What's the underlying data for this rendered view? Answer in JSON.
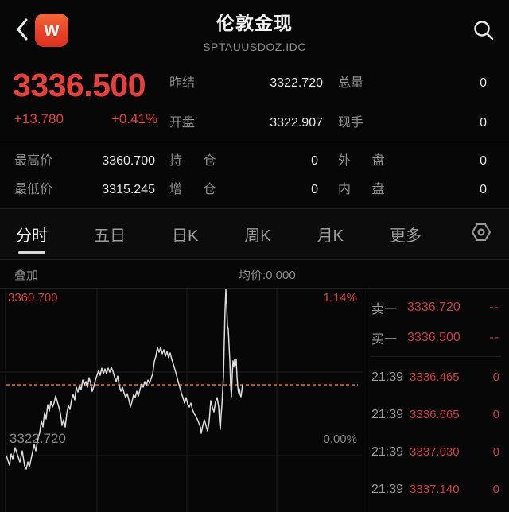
{
  "colors": {
    "up_red": "#e8413c",
    "panel_red": "#ce3a3e",
    "label_gray": "#8d8d8d",
    "value_white": "#e6e6e6",
    "avg_dash_orange": "#c4571f",
    "logo_orange": "#e74128",
    "line_white": "#dcdcdc"
  },
  "icons": {
    "back": "chevron-left",
    "logo": "wind-w",
    "search": "magnifier",
    "settings": "hexagon-gear"
  },
  "header": {
    "logo_text": "w",
    "title": "伦敦金现",
    "subtitle": "SPTAUUSDOZ.IDC"
  },
  "quote": {
    "last_price": "3336.500",
    "change": "+13.780",
    "change_pct": "+0.41%",
    "prev_settle": {
      "label": "昨结",
      "value": "3322.720"
    },
    "open": {
      "label": "开盘",
      "value": "3322.907"
    },
    "total_vol": {
      "label": "总量",
      "value": "0"
    },
    "cur_vol": {
      "label": "现手",
      "value": "0"
    },
    "high": {
      "label": "最高价",
      "value": "3360.700"
    },
    "low": {
      "label": "最低价",
      "value": "3315.245"
    },
    "open_interest": {
      "label": "持 仓",
      "value": "0"
    },
    "oi_change": {
      "label": "增 仓",
      "value": "0"
    },
    "outer_vol": {
      "label": "外 盘",
      "value": "0"
    },
    "inner_vol": {
      "label": "内 盘",
      "value": "0"
    }
  },
  "tabs": [
    {
      "label": "分时",
      "active": true
    },
    {
      "label": "五日",
      "active": false
    },
    {
      "label": "日K",
      "active": false
    },
    {
      "label": "周K",
      "active": false
    },
    {
      "label": "月K",
      "active": false
    },
    {
      "label": "更多",
      "active": false
    }
  ],
  "chart_data": {
    "type": "line",
    "title": "分时 (intraday minute line)",
    "overlay_label": "叠加",
    "avg_label": "均价:0.000",
    "y_max_label": "3360.700",
    "y_max_pct": "1.14%",
    "y_ref_label": "3322.720",
    "y_ref_pct": "0.00%",
    "axis": {
      "price_top": 3360.7,
      "price_ref": 3322.72,
      "high": 3360.7,
      "low": 3315.245,
      "grid": "3 vertical, 2 horizontal, dashed line = last price"
    },
    "last_price": 3336.5,
    "legend_position": "none",
    "points": [
      [
        8,
        3318.7
      ],
      [
        10,
        3317.5
      ],
      [
        12,
        3316.3
      ],
      [
        14,
        3319.1
      ],
      [
        16,
        3317.9
      ],
      [
        19,
        3320.7
      ],
      [
        22,
        3318.9
      ],
      [
        25,
        3317.1
      ],
      [
        28,
        3319.9
      ],
      [
        31,
        3316.1
      ],
      [
        33,
        3315.3
      ],
      [
        35,
        3317.1
      ],
      [
        37,
        3315.9
      ],
      [
        40,
        3318.7
      ],
      [
        43,
        3321.5
      ],
      [
        45,
        3319.9
      ],
      [
        48,
        3323.1
      ],
      [
        50,
        3324.5
      ],
      [
        52,
        3327.5
      ],
      [
        54,
        3325.9
      ],
      [
        56,
        3329.5
      ],
      [
        58,
        3327.9
      ],
      [
        60,
        3331.5
      ],
      [
        62,
        3329.9
      ],
      [
        64,
        3332.3
      ],
      [
        66,
        3330.9
      ],
      [
        68,
        3331.9
      ],
      [
        70,
        3333.7
      ],
      [
        72,
        3332.3
      ],
      [
        74,
        3330.9
      ],
      [
        76,
        3329.3
      ],
      [
        78,
        3326.3
      ],
      [
        80,
        3327.7
      ],
      [
        82,
        3325.9
      ],
      [
        84,
        3329.3
      ],
      [
        86,
        3331.3
      ],
      [
        88,
        3330.3
      ],
      [
        90,
        3332.7
      ],
      [
        92,
        3334.1
      ],
      [
        94,
        3332.7
      ],
      [
        96,
        3335.9
      ],
      [
        98,
        3334.7
      ],
      [
        100,
        3336.3
      ],
      [
        102,
        3335.3
      ],
      [
        104,
        3337.7
      ],
      [
        106,
        3336.5
      ],
      [
        108,
        3337.3
      ],
      [
        110,
        3335.9
      ],
      [
        112,
        3338.3
      ],
      [
        114,
        3336.9
      ],
      [
        116,
        3334.9
      ],
      [
        118,
        3336.1
      ],
      [
        120,
        3337.7
      ],
      [
        122,
        3338.9
      ],
      [
        124,
        3340.1
      ],
      [
        126,
        3338.9
      ],
      [
        128,
        3340.7
      ],
      [
        130,
        3339.3
      ],
      [
        132,
        3340.5
      ],
      [
        134,
        3339.3
      ],
      [
        136,
        3340.7
      ],
      [
        138,
        3339.7
      ],
      [
        140,
        3340.9
      ],
      [
        142,
        3339.9
      ],
      [
        144,
        3338.5
      ],
      [
        146,
        3337.3
      ],
      [
        148,
        3338.7
      ],
      [
        150,
        3336.3
      ],
      [
        152,
        3334.9
      ],
      [
        154,
        3335.9
      ],
      [
        156,
        3334.5
      ],
      [
        158,
        3333.3
      ],
      [
        160,
        3334.3
      ],
      [
        162,
        3332.7
      ],
      [
        164,
        3330.9
      ],
      [
        166,
        3332.3
      ],
      [
        168,
        3334.1
      ],
      [
        170,
        3333.3
      ],
      [
        172,
        3334.9
      ],
      [
        174,
        3333.7
      ],
      [
        176,
        3335.3
      ],
      [
        178,
        3336.7
      ],
      [
        180,
        3335.9
      ],
      [
        182,
        3337.3
      ],
      [
        184,
        3336.3
      ],
      [
        186,
        3337.7
      ],
      [
        188,
        3336.9
      ],
      [
        190,
        3338.1
      ],
      [
        192,
        3339.3
      ],
      [
        194,
        3342.3
      ],
      [
        196,
        3343.7
      ],
      [
        198,
        3345.9
      ],
      [
        200,
        3344.7
      ],
      [
        202,
        3345.9
      ],
      [
        204,
        3344.3
      ],
      [
        206,
        3345.3
      ],
      [
        208,
        3343.7
      ],
      [
        210,
        3344.9
      ],
      [
        212,
        3343.3
      ],
      [
        214,
        3344.5
      ],
      [
        216,
        3342.9
      ],
      [
        218,
        3341.7
      ],
      [
        220,
        3340.3
      ],
      [
        222,
        3338.9
      ],
      [
        224,
        3337.3
      ],
      [
        226,
        3335.9
      ],
      [
        228,
        3334.5
      ],
      [
        230,
        3333.3
      ],
      [
        232,
        3331.9
      ],
      [
        234,
        3333.3
      ],
      [
        236,
        3331.7
      ],
      [
        238,
        3330.9
      ],
      [
        240,
        3331.9
      ],
      [
        242,
        3330.3
      ],
      [
        244,
        3329.3
      ],
      [
        246,
        3328.7
      ],
      [
        248,
        3327.9
      ],
      [
        250,
        3326.9
      ],
      [
        252,
        3325.9
      ],
      [
        253,
        3324.3
      ],
      [
        255,
        3326.3
      ],
      [
        257,
        3327.7
      ],
      [
        259,
        3326.3
      ],
      [
        261,
        3324.9
      ],
      [
        263,
        3327.3
      ],
      [
        265,
        3332.5
      ],
      [
        267,
        3330.9
      ],
      [
        269,
        3329.7
      ],
      [
        271,
        3332.3
      ],
      [
        273,
        3333.3
      ],
      [
        275,
        3330.9
      ],
      [
        276,
        3327.3
      ],
      [
        277,
        3325.3
      ],
      [
        278,
        3328.9
      ],
      [
        279,
        3331.3
      ],
      [
        280,
        3335.3
      ],
      [
        281,
        3338.7
      ],
      [
        282,
        3347.3
      ],
      [
        283,
        3355.5
      ],
      [
        284,
        3360.5
      ],
      [
        285,
        3356.5
      ],
      [
        286,
        3351.5
      ],
      [
        287,
        3350.5
      ],
      [
        288,
        3346.5
      ],
      [
        289,
        3342.5
      ],
      [
        290,
        3336.5
      ],
      [
        291,
        3333.5
      ],
      [
        292,
        3339.0
      ],
      [
        293,
        3342.5
      ],
      [
        294,
        3341.0
      ],
      [
        295,
        3342.8
      ],
      [
        296,
        3341.5
      ],
      [
        297,
        3342.8
      ],
      [
        298,
        3338.5
      ],
      [
        299,
        3336.0
      ],
      [
        300,
        3334.5
      ],
      [
        301,
        3335.5
      ],
      [
        302,
        3334.0
      ],
      [
        303,
        3333.5
      ],
      [
        304,
        3335.0
      ],
      [
        305,
        3336.5
      ]
    ]
  },
  "order_book": {
    "ask": {
      "label": "卖一",
      "price": "3336.720",
      "vol": "--"
    },
    "bid": {
      "label": "买一",
      "price": "3336.500",
      "vol": "--"
    }
  },
  "ticks": [
    {
      "time": "21:39",
      "price": "3336.465",
      "vol": "0"
    },
    {
      "time": "21:39",
      "price": "3336.665",
      "vol": "0"
    },
    {
      "time": "21:39",
      "price": "3337.030",
      "vol": "0"
    },
    {
      "time": "21:39",
      "price": "3337.140",
      "vol": "0"
    }
  ]
}
